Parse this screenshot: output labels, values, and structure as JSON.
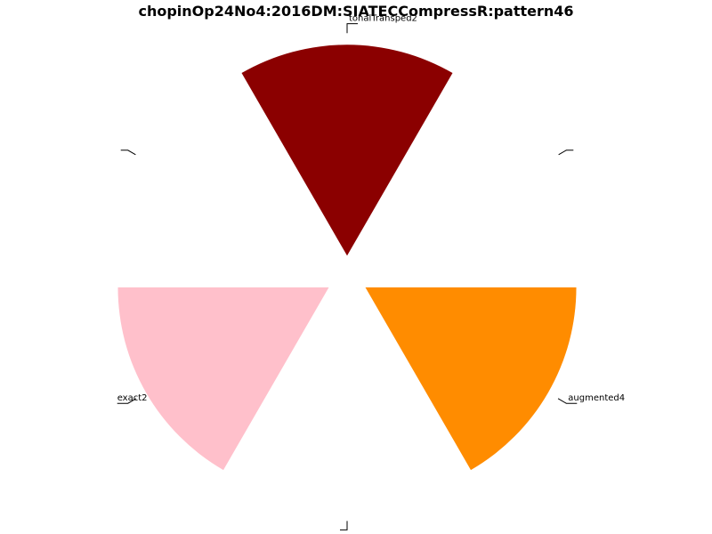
{
  "chart_data": {
    "type": "pie",
    "title": "chopinOp24No4:2016DM:SIATECCompressR:pattern46",
    "slices": [
      {
        "label": "",
        "value": 0,
        "color": "#ffffff"
      },
      {
        "label": "tonalTransped2",
        "value": 1,
        "color": "#8b0000"
      },
      {
        "label": "",
        "value": 0,
        "color": "#ffffff"
      },
      {
        "label": "exact2",
        "value": 1,
        "color": "#ffc0cb"
      },
      {
        "label": "",
        "value": 0,
        "color": "#ffffff"
      },
      {
        "label": "augmented4",
        "value": 1,
        "color": "#ff8c00"
      }
    ],
    "exploded": true,
    "legend": "none"
  }
}
